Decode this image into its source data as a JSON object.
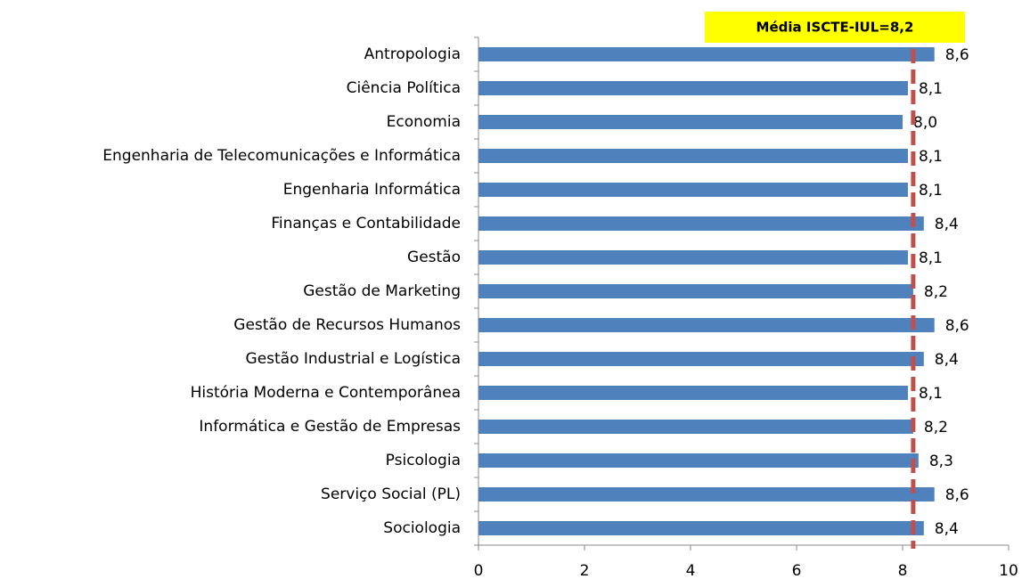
{
  "chart_data": {
    "type": "barh",
    "categories": [
      "Antropologia",
      "Ciência Política",
      "Economia",
      "Engenharia de Telecomunicações e Informática",
      "Engenharia Informática",
      "Finanças e Contabilidade",
      "Gestão",
      "Gestão de Marketing",
      "Gestão de Recursos Humanos",
      "Gestão Industrial e Logística",
      "História Moderna e Contemporânea",
      "Informática e Gestão de Empresas",
      "Psicologia",
      "Serviço Social (PL)",
      "Sociologia"
    ],
    "values": [
      8.6,
      8.1,
      8.0,
      8.1,
      8.1,
      8.4,
      8.1,
      8.2,
      8.6,
      8.4,
      8.1,
      8.2,
      8.3,
      8.6,
      8.4
    ],
    "value_labels": [
      "8,6",
      "8,1",
      "8,0",
      "8,1",
      "8,1",
      "8,4",
      "8,1",
      "8,2",
      "8,6",
      "8,4",
      "8,1",
      "8,2",
      "8,3",
      "8,6",
      "8,4"
    ],
    "color": "#4f81bd",
    "xlim": [
      0,
      10
    ],
    "xticks": [
      0,
      2,
      4,
      6,
      8,
      10
    ],
    "reference_line": {
      "value": 8.2,
      "label": "Média ISCTE-IUL=8,2",
      "color": "#c0504d",
      "box_color": "#ffff00"
    }
  }
}
